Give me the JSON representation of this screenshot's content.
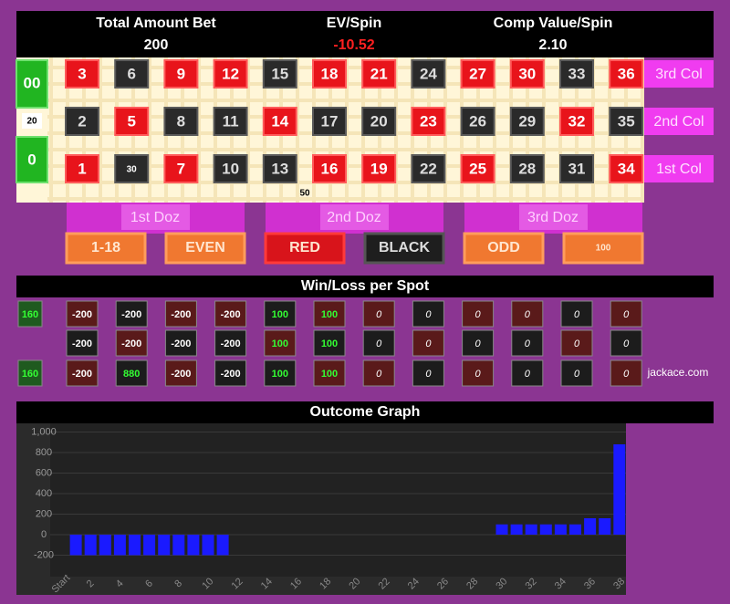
{
  "header": {
    "items": [
      {
        "label": "Total Amount Bet",
        "value": "200"
      },
      {
        "label": "EV/Spin",
        "value": "-10.52"
      },
      {
        "label": "Comp Value/Spin",
        "value": "2.10"
      }
    ]
  },
  "board": {
    "zeros": [
      "00",
      "0"
    ],
    "zero_bet": "20",
    "line_bet": "50",
    "rows": [
      {
        "column": "3rd Col",
        "cells": [
          {
            "label": "3",
            "color": "red"
          },
          {
            "label": "6",
            "color": "black"
          },
          {
            "label": "9",
            "color": "red"
          },
          {
            "label": "12",
            "color": "red"
          },
          {
            "label": "15",
            "color": "black"
          },
          {
            "label": "18",
            "color": "red"
          },
          {
            "label": "21",
            "color": "red"
          },
          {
            "label": "24",
            "color": "black"
          },
          {
            "label": "27",
            "color": "red"
          },
          {
            "label": "30",
            "color": "red"
          },
          {
            "label": "33",
            "color": "black"
          },
          {
            "label": "36",
            "color": "red"
          }
        ]
      },
      {
        "column": "2nd Col",
        "cells": [
          {
            "label": "2",
            "color": "black"
          },
          {
            "label": "5",
            "color": "red"
          },
          {
            "label": "8",
            "color": "black"
          },
          {
            "label": "11",
            "color": "black"
          },
          {
            "label": "14",
            "color": "red"
          },
          {
            "label": "17",
            "color": "black"
          },
          {
            "label": "20",
            "color": "black"
          },
          {
            "label": "23",
            "color": "red"
          },
          {
            "label": "26",
            "color": "black"
          },
          {
            "label": "29",
            "color": "black"
          },
          {
            "label": "32",
            "color": "red"
          },
          {
            "label": "35",
            "color": "black"
          }
        ]
      },
      {
        "column": "1st Col",
        "cells": [
          {
            "label": "1",
            "color": "red"
          },
          {
            "label": "30",
            "color": "black"
          },
          {
            "label": "7",
            "color": "red"
          },
          {
            "label": "10",
            "color": "black"
          },
          {
            "label": "13",
            "color": "black"
          },
          {
            "label": "16",
            "color": "red"
          },
          {
            "label": "19",
            "color": "red"
          },
          {
            "label": "22",
            "color": "black"
          },
          {
            "label": "25",
            "color": "red"
          },
          {
            "label": "28",
            "color": "black"
          },
          {
            "label": "31",
            "color": "black"
          },
          {
            "label": "34",
            "color": "red"
          }
        ]
      }
    ],
    "dozens": [
      "1st Doz",
      "2nd Doz",
      "3rd Doz"
    ],
    "outside": [
      "1-18",
      "EVEN",
      "RED",
      "BLACK",
      "ODD",
      "100"
    ]
  },
  "win_loss": {
    "title": "Win/Loss per Spot",
    "credit": "jackace.com",
    "rows": [
      {
        "zero": 160,
        "values": [
          -200,
          -200,
          -200,
          -200,
          100,
          100,
          0,
          0,
          0,
          0,
          0,
          0
        ]
      },
      {
        "values": [
          -200,
          -200,
          -200,
          -200,
          100,
          100,
          0,
          0,
          0,
          0,
          0,
          0
        ]
      },
      {
        "zero": 160,
        "values": [
          -200,
          880,
          -200,
          -200,
          100,
          100,
          0,
          0,
          0,
          0,
          0,
          0
        ]
      }
    ]
  },
  "chart_data": {
    "type": "bar",
    "title": "Outcome Graph",
    "color": "#1a1aff",
    "grid": true,
    "categories": [
      "Start",
      null,
      "2",
      null,
      "4",
      null,
      "6",
      null,
      "8",
      null,
      "10",
      null,
      "12",
      null,
      "14",
      null,
      "16",
      null,
      "18",
      null,
      "20",
      null,
      "22",
      null,
      "24",
      null,
      "26",
      null,
      "28",
      null,
      "30",
      null,
      "32",
      null,
      "34",
      null,
      "36",
      null,
      "38"
    ],
    "values": [
      0,
      -200,
      -200,
      -200,
      -200,
      -200,
      -200,
      -200,
      -200,
      -200,
      -200,
      -200,
      0,
      0,
      0,
      0,
      0,
      0,
      0,
      0,
      0,
      0,
      0,
      0,
      0,
      0,
      0,
      0,
      0,
      0,
      100,
      100,
      100,
      100,
      100,
      100,
      160,
      160,
      880
    ],
    "ylim": [
      -400,
      1000
    ],
    "yticks": [
      -200,
      0,
      200,
      400,
      600,
      800,
      {
        "value": 1000,
        "label": "1,000"
      }
    ]
  }
}
